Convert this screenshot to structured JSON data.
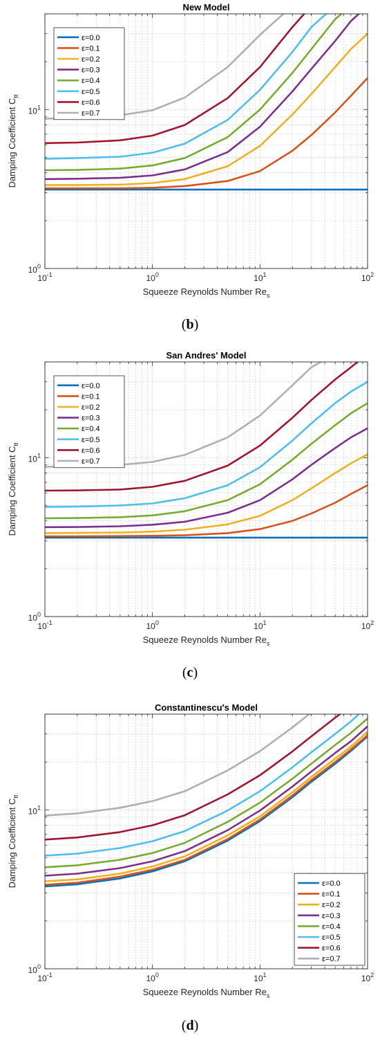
{
  "panels": [
    {
      "caption_letter": "b",
      "chart_data": {
        "type": "line",
        "title": "New Model",
        "xlabel": "Squeeze Reynolds Number Re",
        "xlabel_subscript": "s",
        "ylabel": "Damping Coefficient C",
        "ylabel_subscript": "tt",
        "xscale": "log",
        "yscale": "log",
        "xlim": [
          0.1,
          100
        ],
        "ylim": [
          1,
          40
        ],
        "grid": true,
        "minor_grid": true,
        "legend_position": "top-left",
        "x_ticks": [
          {
            "base": "10",
            "exp": "-1"
          },
          {
            "base": "10",
            "exp": "0"
          },
          {
            "base": "10",
            "exp": "1"
          },
          {
            "base": "10",
            "exp": "2"
          }
        ],
        "y_ticks": [
          {
            "base": "10",
            "exp": "0"
          },
          {
            "base": "10",
            "exp": "1"
          }
        ],
        "x": [
          0.1,
          0.2,
          0.5,
          1,
          2,
          5,
          10,
          20,
          30,
          50,
          70,
          100
        ],
        "series": [
          {
            "name": "ε=0.0",
            "color": "#0072BD",
            "values": [
              3.14,
              3.14,
              3.14,
              3.14,
              3.14,
              3.14,
              3.14,
              3.14,
              3.14,
              3.14,
              3.14,
              3.14
            ]
          },
          {
            "name": "ε=0.1",
            "color": "#D95319",
            "values": [
              3.2,
              3.2,
              3.2,
              3.22,
              3.3,
              3.55,
              4.1,
              5.5,
              6.9,
              9.6,
              12.2,
              15.8
            ]
          },
          {
            "name": "ε=0.2",
            "color": "#EDB120",
            "values": [
              3.35,
              3.35,
              3.37,
              3.45,
              3.65,
              4.4,
              5.9,
              9.3,
              12.5,
              18.5,
              24,
              30
            ]
          },
          {
            "name": "ε=0.3",
            "color": "#7E2F8E",
            "values": [
              3.65,
              3.67,
              3.72,
              3.85,
              4.2,
              5.4,
              7.8,
              13,
              18,
              27,
              36,
              45
            ]
          },
          {
            "name": "ε=0.4",
            "color": "#77AC30",
            "values": [
              4.15,
              4.17,
              4.25,
              4.45,
              4.95,
              6.7,
              10,
              17,
              24,
              37,
              45,
              45
            ]
          },
          {
            "name": "ε=0.5",
            "color": "#4DBEEE",
            "values": [
              4.9,
              4.95,
              5.05,
              5.35,
              6.1,
              8.6,
              13.3,
              23,
              33,
              45,
              45,
              45
            ]
          },
          {
            "name": "ε=0.6",
            "color": "#A2142F",
            "values": [
              6.15,
              6.2,
              6.4,
              6.85,
              8,
              11.8,
              18.5,
              33,
              45,
              45,
              45,
              45
            ]
          },
          {
            "name": "ε=0.7",
            "color": "#B0B0B0",
            "values": [
              8.75,
              8.85,
              9.2,
              9.9,
              11.9,
              18.5,
              29.5,
              45,
              45,
              45,
              45,
              45
            ]
          }
        ]
      }
    },
    {
      "caption_letter": "c",
      "chart_data": {
        "type": "line",
        "title": "San Andres' Model",
        "xlabel": "Squeeze Reynolds Number Re",
        "xlabel_subscript": "s",
        "ylabel": "Damping Coefficient C",
        "ylabel_subscript": "tt",
        "xscale": "log",
        "yscale": "log",
        "xlim": [
          0.1,
          100
        ],
        "ylim": [
          1,
          40
        ],
        "grid": true,
        "minor_grid": true,
        "legend_position": "top-left",
        "x_ticks": [
          {
            "base": "10",
            "exp": "-1"
          },
          {
            "base": "10",
            "exp": "0"
          },
          {
            "base": "10",
            "exp": "1"
          },
          {
            "base": "10",
            "exp": "2"
          }
        ],
        "y_ticks": [
          {
            "base": "10",
            "exp": "0"
          },
          {
            "base": "10",
            "exp": "1"
          }
        ],
        "x": [
          0.1,
          0.2,
          0.5,
          1,
          2,
          5,
          10,
          20,
          30,
          50,
          70,
          100
        ],
        "series": [
          {
            "name": "ε=0.0",
            "color": "#0072BD",
            "values": [
              3.14,
              3.14,
              3.14,
              3.14,
              3.14,
              3.14,
              3.14,
              3.14,
              3.14,
              3.14,
              3.14,
              3.14
            ]
          },
          {
            "name": "ε=0.1",
            "color": "#D95319",
            "values": [
              3.2,
              3.2,
              3.21,
              3.22,
              3.25,
              3.35,
              3.55,
              4,
              4.45,
              5.2,
              5.9,
              6.7
            ]
          },
          {
            "name": "ε=0.2",
            "color": "#EDB120",
            "values": [
              3.35,
              3.36,
              3.38,
              3.42,
              3.52,
              3.8,
              4.3,
              5.4,
              6.4,
              8,
              9.2,
              10.5
            ]
          },
          {
            "name": "ε=0.3",
            "color": "#7E2F8E",
            "values": [
              3.65,
              3.66,
              3.7,
              3.78,
              3.95,
              4.5,
              5.4,
              7.3,
              9,
              11.5,
              13.4,
              15.3
            ]
          },
          {
            "name": "ε=0.4",
            "color": "#77AC30",
            "values": [
              4.15,
              4.17,
              4.22,
              4.33,
              4.6,
              5.4,
              6.8,
              9.7,
              12.2,
              16,
              19,
              22
            ]
          },
          {
            "name": "ε=0.5",
            "color": "#4DBEEE",
            "values": [
              4.9,
              4.92,
              5,
              5.15,
              5.55,
              6.7,
              8.7,
              12.8,
              16.4,
              22,
              26,
              30
            ]
          },
          {
            "name": "ε=0.6",
            "color": "#A2142F",
            "values": [
              6.2,
              6.22,
              6.3,
              6.55,
              7.15,
              8.9,
              11.9,
              17.8,
              23,
              31,
              37,
              45
            ]
          },
          {
            "name": "ε=0.7",
            "color": "#B0B0B0",
            "values": [
              8.75,
              8.8,
              9,
              9.4,
              10.4,
              13.4,
              18.4,
              28.5,
              37,
              45,
              45,
              45
            ]
          }
        ]
      }
    },
    {
      "caption_letter": "d",
      "chart_data": {
        "type": "line",
        "title": "Constantinescu's Model",
        "xlabel": "Squeeze Reynolds Number Re",
        "xlabel_subscript": "s",
        "ylabel": "Damping Coefficient C",
        "ylabel_subscript": "tt",
        "xscale": "log",
        "yscale": "log",
        "xlim": [
          0.1,
          100
        ],
        "ylim": [
          1,
          40
        ],
        "grid": true,
        "minor_grid": true,
        "legend_position": "bottom-right",
        "x_ticks": [
          {
            "base": "10",
            "exp": "-1"
          },
          {
            "base": "10",
            "exp": "0"
          },
          {
            "base": "10",
            "exp": "1"
          },
          {
            "base": "10",
            "exp": "2"
          }
        ],
        "y_ticks": [
          {
            "base": "10",
            "exp": "0"
          },
          {
            "base": "10",
            "exp": "1"
          }
        ],
        "x": [
          0.1,
          0.2,
          0.5,
          1,
          2,
          5,
          10,
          20,
          30,
          50,
          70,
          100
        ],
        "series": [
          {
            "name": "ε=0.0",
            "color": "#0072BD",
            "values": [
              3.3,
              3.4,
              3.7,
              4.1,
              4.75,
              6.4,
              8.5,
              12,
              15,
              19.5,
              23.5,
              29
            ]
          },
          {
            "name": "ε=0.1",
            "color": "#D95319",
            "values": [
              3.38,
              3.48,
              3.8,
              4.2,
              4.85,
              6.55,
              8.7,
              12.3,
              15.4,
              20,
              24,
              29.5
            ]
          },
          {
            "name": "ε=0.2",
            "color": "#EDB120",
            "values": [
              3.55,
              3.65,
              3.97,
              4.4,
              5.1,
              6.9,
              9.1,
              12.9,
              16.1,
              21,
              25,
              31
            ]
          },
          {
            "name": "ε=0.3",
            "color": "#7E2F8E",
            "values": [
              3.85,
              3.97,
              4.3,
              4.75,
              5.5,
              7.45,
              9.9,
              14,
              17.4,
              22.8,
              27,
              33.5
            ]
          },
          {
            "name": "ε=0.4",
            "color": "#77AC30",
            "values": [
              4.35,
              4.48,
              4.85,
              5.35,
              6.2,
              8.4,
              11.1,
              15.7,
              19.5,
              25.6,
              30.5,
              37.5
            ]
          },
          {
            "name": "ε=0.5",
            "color": "#4DBEEE",
            "values": [
              5.15,
              5.3,
              5.75,
              6.35,
              7.35,
              9.9,
              13.1,
              18.5,
              23,
              30,
              36,
              45
            ]
          },
          {
            "name": "ε=0.6",
            "color": "#A2142F",
            "values": [
              6.5,
              6.7,
              7.25,
              8,
              9.25,
              12.5,
              16.5,
              23.3,
              29,
              38,
              45,
              45
            ]
          },
          {
            "name": "ε=0.7",
            "color": "#B0B0B0",
            "values": [
              9.2,
              9.5,
              10.3,
              11.35,
              13.1,
              17.7,
              23.4,
              33,
              41,
              45,
              45,
              45
            ]
          }
        ]
      }
    }
  ]
}
